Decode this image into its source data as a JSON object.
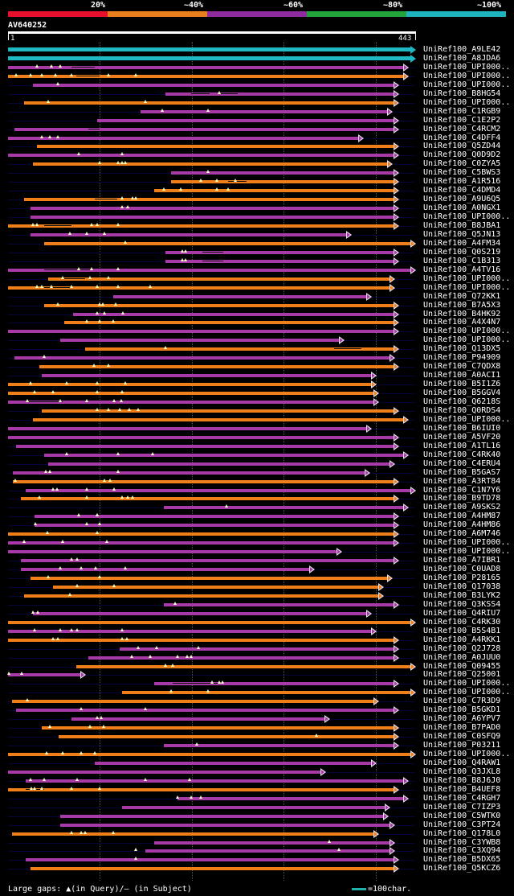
{
  "identity_scale": {
    "labels": [
      "20%",
      "~40%",
      "~60%",
      "~80%",
      "~100%"
    ],
    "colors": [
      "#e8102d",
      "#e97f1c",
      "#8e2b9e",
      "#23a33b",
      "#1fb3bd"
    ]
  },
  "query": {
    "id": "AV640252",
    "start": "1",
    "end": "443",
    "length": 443
  },
  "colors": {
    "orange": "#f07f1a",
    "purple": "#a73aa7",
    "teal": "#1fb8c2"
  },
  "hits": [
    {
      "name": "UniRef100_A9LE42",
      "start": 1,
      "end": 443,
      "color": "teal",
      "gaps": [],
      "marks": []
    },
    {
      "name": "UniRef100_A8JDA6",
      "start": 1,
      "end": 443,
      "color": "teal",
      "gaps": [],
      "marks": []
    },
    {
      "name": "UniRef100_UPI000..",
      "start": 1,
      "end": 435,
      "color": "purple",
      "gaps": [
        [
          70,
          95
        ]
      ],
      "marks": [
        32,
        48,
        58
      ]
    },
    {
      "name": "UniRef100_UPI000..",
      "start": 1,
      "end": 435,
      "color": "orange",
      "gaps": [
        [
          75,
          100
        ]
      ],
      "marks": [
        10,
        25,
        38,
        52,
        70,
        110,
        140
      ]
    },
    {
      "name": "UniRef100_UPI000..",
      "start": 28,
      "end": 425,
      "color": "purple",
      "gaps": [],
      "marks": [
        55
      ]
    },
    {
      "name": "UniRef100_B8HG54",
      "start": 172,
      "end": 425,
      "color": "purple",
      "gaps": [
        [
          200,
          220
        ],
        [
          232,
          250
        ]
      ],
      "marks": [
        230
      ]
    },
    {
      "name": "UniRef100_UPI000..",
      "start": 18,
      "end": 425,
      "color": "orange",
      "gaps": [],
      "marks": [
        45,
        150
      ]
    },
    {
      "name": "UniRef100_C1RGB9",
      "start": 145,
      "end": 418,
      "color": "purple",
      "gaps": [],
      "marks": [
        168,
        218
      ]
    },
    {
      "name": "UniRef100_C1E2P2",
      "start": 98,
      "end": 425,
      "color": "purple",
      "gaps": [],
      "marks": []
    },
    {
      "name": "UniRef100_C4RCM2",
      "start": 8,
      "end": 425,
      "color": "purple",
      "gaps": [
        [
          88,
          100
        ]
      ],
      "marks": []
    },
    {
      "name": "UniRef100_C4DFF4",
      "start": 1,
      "end": 386,
      "color": "purple",
      "gaps": [],
      "marks": [
        38,
        46,
        55
      ]
    },
    {
      "name": "UniRef100_Q5ZD44",
      "start": 32,
      "end": 425,
      "color": "orange",
      "gaps": [],
      "marks": []
    },
    {
      "name": "UniRef100_Q0D9D2",
      "start": 1,
      "end": 425,
      "color": "purple",
      "gaps": [],
      "marks": [
        78,
        125
      ]
    },
    {
      "name": "UniRef100_C0ZYA5",
      "start": 28,
      "end": 418,
      "color": "orange",
      "gaps": [],
      "marks": [
        100,
        120,
        125,
        128
      ]
    },
    {
      "name": "UniRef100_C5BWS3",
      "start": 178,
      "end": 425,
      "color": "purple",
      "gaps": [],
      "marks": [
        218
      ]
    },
    {
      "name": "UniRef100_A1R516",
      "start": 178,
      "end": 425,
      "color": "orange",
      "gaps": [
        [
          240,
          260
        ]
      ],
      "marks": [
        210,
        228,
        248
      ]
    },
    {
      "name": "UniRef100_C4DMD4",
      "start": 160,
      "end": 425,
      "color": "orange",
      "gaps": [],
      "marks": [
        170,
        188,
        228,
        240
      ]
    },
    {
      "name": "UniRef100_A9U6Q5",
      "start": 18,
      "end": 425,
      "color": "orange",
      "gaps": [
        [
          95,
          120
        ]
      ],
      "marks": [
        125,
        136,
        140
      ]
    },
    {
      "name": "UniRef100_A0NGX1",
      "start": 25,
      "end": 425,
      "color": "purple",
      "gaps": [],
      "marks": [
        125,
        131
      ]
    },
    {
      "name": "UniRef100_UPI000..",
      "start": 25,
      "end": 425,
      "color": "purple",
      "gaps": [],
      "marks": []
    },
    {
      "name": "UniRef100_B8JBA1",
      "start": 1,
      "end": 425,
      "color": "orange",
      "gaps": [
        [
          40,
          70
        ]
      ],
      "marks": [
        28,
        32,
        92,
        98,
        120
      ]
    },
    {
      "name": "UniRef100_Q5JN13",
      "start": 25,
      "end": 373,
      "color": "purple",
      "gaps": [],
      "marks": [
        68,
        86,
        106
      ]
    },
    {
      "name": "UniRef100_A4FM34",
      "start": 40,
      "end": 443,
      "color": "orange",
      "gaps": [],
      "marks": [
        128
      ]
    },
    {
      "name": "UniRef100_Q0S219",
      "start": 172,
      "end": 425,
      "color": "purple",
      "gaps": [
        [
          212,
          235
        ]
      ],
      "marks": [
        190,
        194
      ]
    },
    {
      "name": "UniRef100_C1B313",
      "start": 172,
      "end": 425,
      "color": "purple",
      "gaps": [
        [
          212,
          235
        ]
      ],
      "marks": [
        190,
        194
      ]
    },
    {
      "name": "UniRef100_A4TV16",
      "start": 1,
      "end": 443,
      "color": "purple",
      "gaps": [
        [
          40,
          90
        ]
      ],
      "marks": [
        78,
        92,
        120
      ]
    },
    {
      "name": "UniRef100_UPI000..",
      "start": 45,
      "end": 420,
      "color": "orange",
      "gaps": [
        [
          60,
          85
        ]
      ],
      "marks": [
        60,
        90,
        110
      ]
    },
    {
      "name": "UniRef100_UPI000..",
      "start": 1,
      "end": 420,
      "color": "orange",
      "gaps": [
        [
          40,
          70
        ]
      ],
      "marks": [
        32,
        38,
        48,
        70,
        98,
        120,
        155
      ]
    },
    {
      "name": "UniRef100_Q72KK1",
      "start": 115,
      "end": 395,
      "color": "purple",
      "gaps": [],
      "marks": []
    },
    {
      "name": "UniRef100_B7A5X3",
      "start": 40,
      "end": 425,
      "color": "orange",
      "gaps": [],
      "marks": [
        55,
        100,
        104,
        118
      ]
    },
    {
      "name": "UniRef100_B4HK92",
      "start": 72,
      "end": 425,
      "color": "purple",
      "gaps": [],
      "marks": [
        98,
        106,
        126
      ]
    },
    {
      "name": "UniRef100_A4X4N7",
      "start": 62,
      "end": 425,
      "color": "orange",
      "gaps": [],
      "marks": [
        86,
        100,
        115
      ]
    },
    {
      "name": "UniRef100_UPI000..",
      "start": 1,
      "end": 425,
      "color": "purple",
      "gaps": [],
      "marks": []
    },
    {
      "name": "UniRef100_UPI000..",
      "start": 58,
      "end": 365,
      "color": "purple",
      "gaps": [],
      "marks": []
    },
    {
      "name": "UniRef100_Q13DX5",
      "start": 85,
      "end": 425,
      "color": "orange",
      "gaps": [
        [
          355,
          385
        ]
      ],
      "marks": [
        172
      ]
    },
    {
      "name": "UniRef100_P94909",
      "start": 8,
      "end": 420,
      "color": "purple",
      "gaps": [],
      "marks": [
        40
      ]
    },
    {
      "name": "UniRef100_C7QDX8",
      "start": 35,
      "end": 425,
      "color": "orange",
      "gaps": [],
      "marks": [
        94,
        110
      ]
    },
    {
      "name": "UniRef100_A0ACI1",
      "start": 38,
      "end": 400,
      "color": "purple",
      "gaps": [],
      "marks": []
    },
    {
      "name": "UniRef100_B5I1Z6",
      "start": 1,
      "end": 400,
      "color": "orange",
      "gaps": [],
      "marks": [
        25,
        65,
        98,
        128
      ]
    },
    {
      "name": "UniRef100_B5GGV4",
      "start": 1,
      "end": 403,
      "color": "orange",
      "gaps": [],
      "marks": [
        30,
        50,
        98,
        125
      ]
    },
    {
      "name": "UniRef100_Q6218S",
      "start": 1,
      "end": 403,
      "color": "purple",
      "gaps": [
        [
          20,
          60
        ]
      ],
      "marks": [
        22,
        58,
        86,
        116,
        124
      ]
    },
    {
      "name": "UniRef100_Q0RDS4",
      "start": 38,
      "end": 425,
      "color": "orange",
      "gaps": [],
      "marks": [
        98,
        110,
        122,
        133,
        142
      ]
    },
    {
      "name": "UniRef100_UPI000..",
      "start": 28,
      "end": 435,
      "color": "orange",
      "gaps": [],
      "marks": []
    },
    {
      "name": "UniRef100_B6IUI0",
      "start": 1,
      "end": 395,
      "color": "purple",
      "gaps": [],
      "marks": []
    },
    {
      "name": "UniRef100_A5VF20",
      "start": 1,
      "end": 425,
      "color": "purple",
      "gaps": [],
      "marks": []
    },
    {
      "name": "UniRef100_A1TL16",
      "start": 10,
      "end": 425,
      "color": "purple",
      "gaps": [],
      "marks": []
    },
    {
      "name": "UniRef100_C4RK40",
      "start": 40,
      "end": 435,
      "color": "purple",
      "gaps": [],
      "marks": [
        65,
        120,
        158
      ]
    },
    {
      "name": "UniRef100_C4ERU4",
      "start": 45,
      "end": 420,
      "color": "purple",
      "gaps": [],
      "marks": []
    },
    {
      "name": "UniRef100_B5GAS7",
      "start": 6,
      "end": 393,
      "color": "purple",
      "gaps": [],
      "marks": [
        42,
        46,
        120
      ]
    },
    {
      "name": "UniRef100_A3RT84",
      "start": 6,
      "end": 425,
      "color": "orange",
      "gaps": [],
      "marks": [
        9,
        106,
        112
      ]
    },
    {
      "name": "UniRef100_C1N7Y6",
      "start": 20,
      "end": 443,
      "color": "purple",
      "gaps": [],
      "marks": [
        50,
        54,
        86,
        116
      ]
    },
    {
      "name": "UniRef100_B9TD78",
      "start": 15,
      "end": 425,
      "color": "orange",
      "gaps": [],
      "marks": [
        35,
        86,
        125,
        131,
        136
      ]
    },
    {
      "name": "UniRef100_A9SKS2",
      "start": 170,
      "end": 435,
      "color": "purple",
      "gaps": [],
      "marks": [
        238
      ]
    },
    {
      "name": "UniRef100_A4HM87",
      "start": 30,
      "end": 425,
      "color": "purple",
      "gaps": [],
      "marks": [
        78,
        98,
        98
      ]
    },
    {
      "name": "UniRef100_A4HM86",
      "start": 30,
      "end": 425,
      "color": "purple",
      "gaps": [],
      "marks": [
        31,
        86,
        100
      ]
    },
    {
      "name": "UniRef100_A6M746",
      "start": 1,
      "end": 425,
      "color": "orange",
      "gaps": [],
      "marks": [
        44,
        98
      ]
    },
    {
      "name": "UniRef100_UPI000..",
      "start": 1,
      "end": 425,
      "color": "purple",
      "gaps": [],
      "marks": [
        18,
        60,
        108
      ]
    },
    {
      "name": "UniRef100_UPI000..",
      "start": 1,
      "end": 363,
      "color": "purple",
      "gaps": [],
      "marks": []
    },
    {
      "name": "UniRef100_A7IBR1",
      "start": 15,
      "end": 425,
      "color": "purple",
      "gaps": [],
      "marks": [
        70,
        76
      ]
    },
    {
      "name": "UniRef100_C0UAD8",
      "start": 15,
      "end": 333,
      "color": "purple",
      "gaps": [],
      "marks": [
        58,
        80,
        96,
        128
      ]
    },
    {
      "name": "UniRef100_P28165",
      "start": 25,
      "end": 418,
      "color": "orange",
      "gaps": [],
      "marks": [
        45,
        100
      ]
    },
    {
      "name": "UniRef100_Q17038",
      "start": 50,
      "end": 408,
      "color": "orange",
      "gaps": [],
      "marks": [
        76,
        116
      ]
    },
    {
      "name": "UniRef100_B3LYK2",
      "start": 18,
      "end": 408,
      "color": "orange",
      "gaps": [],
      "marks": [
        68
      ]
    },
    {
      "name": "UniRef100_Q3KSS4",
      "start": 170,
      "end": 425,
      "color": "purple",
      "gaps": [],
      "marks": [
        182
      ]
    },
    {
      "name": "UniRef100_Q4RIU7",
      "start": 28,
      "end": 395,
      "color": "purple",
      "gaps": [],
      "marks": [
        28,
        33
      ]
    },
    {
      "name": "UniRef100_C4RK30",
      "start": 1,
      "end": 443,
      "color": "orange",
      "gaps": [],
      "marks": []
    },
    {
      "name": "UniRef100_B5S4B1",
      "start": 1,
      "end": 400,
      "color": "purple",
      "gaps": [],
      "marks": [
        30,
        58,
        70,
        76,
        125
      ]
    },
    {
      "name": "UniRef100_A4RKK1",
      "start": 1,
      "end": 425,
      "color": "orange",
      "gaps": [],
      "marks": [
        50,
        55,
        125,
        130
      ]
    },
    {
      "name": "UniRef100_Q2J728",
      "start": 122,
      "end": 425,
      "color": "purple",
      "gaps": [],
      "marks": [
        142,
        162,
        208
      ]
    },
    {
      "name": "UniRef100_A0JUU0",
      "start": 88,
      "end": 425,
      "color": "purple",
      "gaps": [],
      "marks": [
        135,
        155,
        185,
        195,
        200
      ]
    },
    {
      "name": "UniRef100_Q09455",
      "start": 75,
      "end": 443,
      "color": "orange",
      "gaps": [],
      "marks": [
        172,
        180
      ]
    },
    {
      "name": "UniRef100_Q25001",
      "start": 1,
      "end": 85,
      "color": "purple",
      "gaps": [],
      "marks": [
        2,
        16
      ]
    },
    {
      "name": "UniRef100_UPI000..",
      "start": 160,
      "end": 425,
      "color": "purple",
      "gaps": [
        [
          180,
          230
        ]
      ],
      "marks": [
        222,
        230,
        234
      ]
    },
    {
      "name": "UniRef100_UPI000..",
      "start": 125,
      "end": 443,
      "color": "orange",
      "gaps": [],
      "marks": [
        178,
        218
      ]
    },
    {
      "name": "UniRef100_C7R3D9",
      "start": 5,
      "end": 403,
      "color": "orange",
      "gaps": [],
      "marks": [
        22
      ]
    },
    {
      "name": "UniRef100_B5GKD1",
      "start": 10,
      "end": 425,
      "color": "purple",
      "gaps": [],
      "marks": [
        80,
        150
      ]
    },
    {
      "name": "UniRef100_A6YPV7",
      "start": 70,
      "end": 350,
      "color": "purple",
      "gaps": [],
      "marks": [
        98,
        102
      ]
    },
    {
      "name": "UniRef100_B7PAD0",
      "start": 38,
      "end": 425,
      "color": "orange",
      "gaps": [],
      "marks": [
        46,
        90,
        105
      ]
    },
    {
      "name": "UniRef100_C0SFQ9",
      "start": 56,
      "end": 425,
      "color": "orange",
      "gaps": [],
      "marks": [
        336
      ]
    },
    {
      "name": "UniRef100_P03211",
      "start": 170,
      "end": 425,
      "color": "purple",
      "gaps": [],
      "marks": [
        206
      ]
    },
    {
      "name": "UniRef100_UPI000..",
      "start": 1,
      "end": 443,
      "color": "orange",
      "gaps": [],
      "marks": [
        43,
        60,
        80,
        95
      ]
    },
    {
      "name": "UniRef100_Q4RAW1",
      "start": 95,
      "end": 400,
      "color": "purple",
      "gaps": [],
      "marks": []
    },
    {
      "name": "UniRef100_Q3JXL8",
      "start": 1,
      "end": 345,
      "color": "purple",
      "gaps": [],
      "marks": []
    },
    {
      "name": "UniRef100_B8J6J0",
      "start": 20,
      "end": 435,
      "color": "purple",
      "gaps": [],
      "marks": [
        25,
        40,
        76,
        150,
        198
      ]
    },
    {
      "name": "UniRef100_B4UEF8",
      "start": 1,
      "end": 425,
      "color": "orange",
      "gaps": [
        [
          20,
          40
        ]
      ],
      "marks": [
        26,
        30,
        38,
        70,
        100
      ]
    },
    {
      "name": "UniRef100_C4RGH7",
      "start": 185,
      "end": 435,
      "color": "purple",
      "gaps": [],
      "marks": [
        185,
        200,
        210
      ]
    },
    {
      "name": "UniRef100_C7IZP3",
      "start": 125,
      "end": 415,
      "color": "purple",
      "gaps": [],
      "marks": []
    },
    {
      "name": "UniRef100_C5WTK0",
      "start": 58,
      "end": 413,
      "color": "purple",
      "gaps": [],
      "marks": []
    },
    {
      "name": "UniRef100_C3PT24",
      "start": 58,
      "end": 420,
      "color": "purple",
      "gaps": [],
      "marks": []
    },
    {
      "name": "UniRef100_Q178L0",
      "start": 5,
      "end": 403,
      "color": "orange",
      "gaps": [],
      "marks": [
        70,
        80,
        85,
        115
      ]
    },
    {
      "name": "UniRef100_C3YWB8",
      "start": 160,
      "end": 420,
      "color": "purple",
      "gaps": [],
      "marks": [
        350
      ]
    },
    {
      "name": "UniRef100_C3XQ94",
      "start": 150,
      "end": 420,
      "color": "purple",
      "gaps": [],
      "marks": [
        140,
        360
      ]
    },
    {
      "name": "UniRef100_B5DX65",
      "start": 20,
      "end": 425,
      "color": "purple",
      "gaps": [],
      "marks": [
        140
      ]
    },
    {
      "name": "UniRef100_Q5KCZ6",
      "start": 25,
      "end": 425,
      "color": "orange",
      "gaps": [],
      "marks": []
    }
  ],
  "legend": {
    "text": "Large gaps: ▲(in Query)/– (in Subject)",
    "scale": "=100char."
  }
}
